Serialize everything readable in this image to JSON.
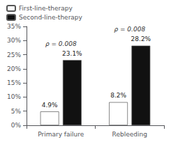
{
  "chart_data": {
    "type": "bar",
    "categories": [
      "Primary failure",
      "Rebleeding"
    ],
    "series": [
      {
        "name": "First-line-therapy",
        "color": "#ffffff",
        "values": [
          4.9,
          8.2
        ],
        "value_labels": [
          "4.9%",
          "8.2%"
        ]
      },
      {
        "name": "Second-line-therapy",
        "color": "#111111",
        "values": [
          23.1,
          28.2
        ],
        "value_labels": [
          "23.1%",
          "28.2%"
        ]
      }
    ],
    "ylim": [
      0,
      35
    ],
    "yticks": [
      {
        "value": 0,
        "label": "0%"
      },
      {
        "value": 5,
        "label": "5%"
      },
      {
        "value": 10,
        "label": "10%"
      },
      {
        "value": 15,
        "label": "15%"
      },
      {
        "value": 20,
        "label": "20%"
      },
      {
        "value": 25,
        "label": "25%"
      },
      {
        "value": 30,
        "label": "30%"
      },
      {
        "value": 35,
        "label": "35%"
      }
    ],
    "annotations": [
      "ρ = 0.008",
      "ρ = 0.008"
    ],
    "data_labels": true,
    "legend": "upper left",
    "grid": false
  }
}
